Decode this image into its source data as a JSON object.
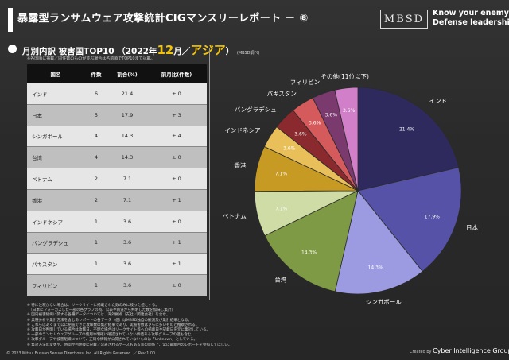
{
  "header": {
    "title": "暴露型ランサムウェア攻撃統計CIGマンスリーレポート － ⑧",
    "logo_text": "MBSD",
    "tagline_line1": "Know your enemy.",
    "tagline_line2": "Defense leadership."
  },
  "subtitle": {
    "prefix": "月別内訳 被害国TOP10 （2022年",
    "month": "12",
    "suffix": "月／",
    "region": "アジア",
    "close": "）",
    "source": "(MBSD調べ)"
  },
  "note_top": "※各国順に掲載／同件数のものが並ぶ場合は名前順でTOP10まで記載。",
  "table": {
    "headers": [
      "国名",
      "件数",
      "割合(%)",
      "前月比(件数)"
    ],
    "rows": [
      {
        "country": "インド",
        "count": "6",
        "share": "21.4",
        "diff": "± 0"
      },
      {
        "country": "日本",
        "count": "5",
        "share": "17.9",
        "diff": "+ 3"
      },
      {
        "country": "シンガポール",
        "count": "4",
        "share": "14.3",
        "diff": "+ 4"
      },
      {
        "country": "台湾",
        "count": "4",
        "share": "14.3",
        "diff": "± 0"
      },
      {
        "country": "ベトナム",
        "count": "2",
        "share": "7.1",
        "diff": "± 0"
      },
      {
        "country": "香港",
        "count": "2",
        "share": "7.1",
        "diff": "+ 1"
      },
      {
        "country": "インドネシア",
        "count": "1",
        "share": "3.6",
        "diff": "± 0"
      },
      {
        "country": "バングラデシュ",
        "count": "1",
        "share": "3.6",
        "diff": "+ 1"
      },
      {
        "country": "パキスタン",
        "count": "1",
        "share": "3.6",
        "diff": "+ 1"
      },
      {
        "country": "フィリピン",
        "count": "1",
        "share": "3.6",
        "diff": "± 0"
      }
    ]
  },
  "chart_data": {
    "type": "pie",
    "title": "",
    "slices": [
      {
        "label": "インド",
        "value": 21.4,
        "value_label": "21.4%",
        "color": "#2e2a5e"
      },
      {
        "label": "日本",
        "value": 17.9,
        "value_label": "17.9%",
        "color": "#5552a8"
      },
      {
        "label": "シンガポール",
        "value": 14.3,
        "value_label": "14.3%",
        "color": "#9c9ae0"
      },
      {
        "label": "台湾",
        "value": 14.3,
        "value_label": "14.3%",
        "color": "#7f9a45"
      },
      {
        "label": "ベトナム",
        "value": 7.1,
        "value_label": "7.1%",
        "color": "#cfdca5"
      },
      {
        "label": "香港",
        "value": 7.1,
        "value_label": "7.1%",
        "color": "#c79a24"
      },
      {
        "label": "インドネシア",
        "value": 3.6,
        "value_label": "3.6%",
        "color": "#e9bf5a"
      },
      {
        "label": "バングラデシュ",
        "value": 3.6,
        "value_label": "3.6%",
        "color": "#8a2a2e"
      },
      {
        "label": "パキスタン",
        "value": 3.6,
        "value_label": "3.6%",
        "color": "#d55a5c"
      },
      {
        "label": "フィリピン",
        "value": 3.6,
        "value_label": "3.6%",
        "color": "#7a3a6e"
      },
      {
        "label": "その他(11位以下)",
        "value": 3.6,
        "value_label": "3.6%",
        "color": "#d27fc9"
      }
    ],
    "start": "12 o'clock",
    "direction": "clockwise",
    "legend": "none (labels outside slices)"
  },
  "notes": [
    "※ 特に注釈がない場合は、リークサイトに掲載された数のみに絞った値とする。",
    "　（日本にフォーカスした一部の各グラフの為、公表や報道から判明した数を加味し集計）",
    "※ 国内被害組織に関する各種データについては、海外拠点（支社／関連会社）を含む。",
    "※ 業種分析や集計方法を含むあレポートの各データ（値）はMBSD独自の観測及び集計結果となる。",
    "※ これらはあくまで公に把握できた攻撃数の集計結果であり、実被害数はさらに多いものと推察される。",
    "※ 攻撃日が判明している場合は攻撃日、不明な場合はリークサイト等への掲載日や記載日を元に集計している。",
    "※ 一部のランサムウェアグループの使用や明確に確認されていない価値ある攻撃グループの値も含む。",
    "※ 攻撃グループや被害組織について、正確な情報が公開されていないものは「Unknown」としている。",
    "※ 集計方法の変更や、時間が判明後に記載／公表されるケースもある等の関係上、常に最新月のレポートを参照してほしい。"
  ],
  "footer": {
    "copyright": "© 2023 Mitsui Bussan Secure Directions, Inc.  All Rights Reserved. ／ Rev 1.00",
    "created_by": "Created by",
    "created_org": "Cyber Intelligence Group"
  }
}
